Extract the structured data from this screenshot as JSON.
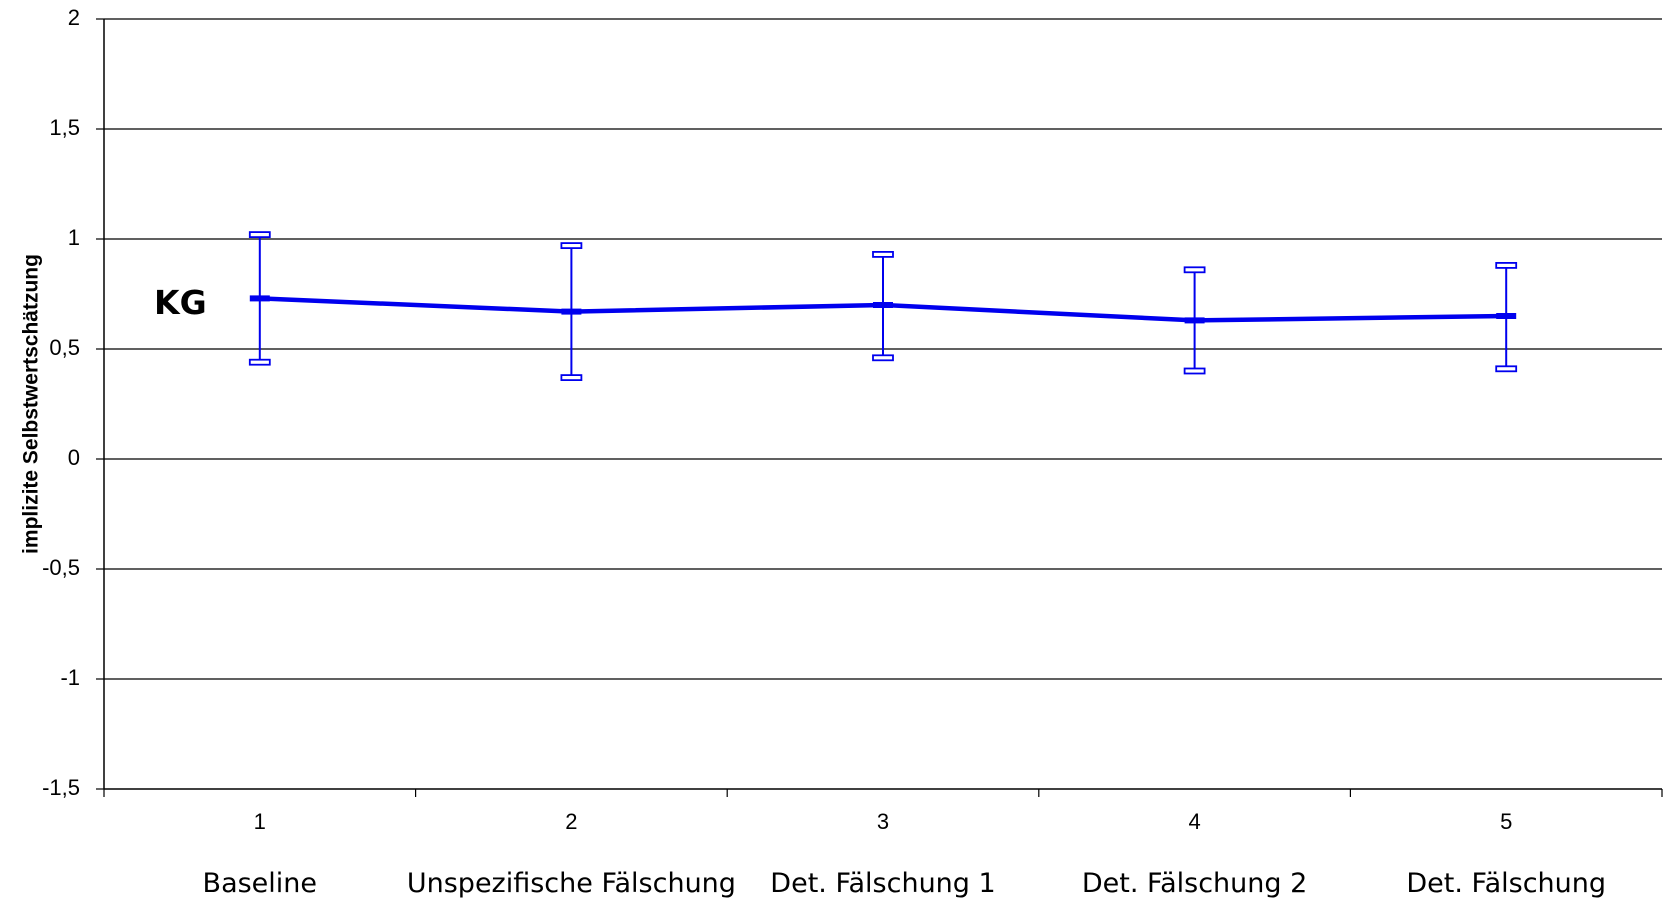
{
  "chart_data": {
    "type": "line",
    "title": "",
    "xlabel": "",
    "ylabel": "implizite Selbstwertschätzung",
    "ylim": [
      -1.5,
      2
    ],
    "yticks": [
      2,
      1.5,
      1,
      0.5,
      0,
      -0.5,
      -1,
      -1.5
    ],
    "ytick_labels": [
      "2",
      "1,5",
      "1",
      "0,5",
      "0",
      "-0,5",
      "-1",
      "-1,5"
    ],
    "x": [
      1,
      2,
      3,
      4,
      5
    ],
    "xtick_labels": [
      "1",
      "2",
      "3",
      "4",
      "5"
    ],
    "category_labels": [
      "Baseline",
      "Unspezifische Fälschung",
      "Det. Fälschung 1",
      "Det. Fälschung 2",
      "Det. Fälschung"
    ],
    "grid": true,
    "series": [
      {
        "name": "KG",
        "color": "#0000ee",
        "values": [
          0.73,
          0.67,
          0.7,
          0.63,
          0.65
        ],
        "error_upper": [
          1.02,
          0.97,
          0.93,
          0.86,
          0.88
        ],
        "error_lower": [
          0.44,
          0.37,
          0.46,
          0.4,
          0.41
        ]
      }
    ]
  }
}
